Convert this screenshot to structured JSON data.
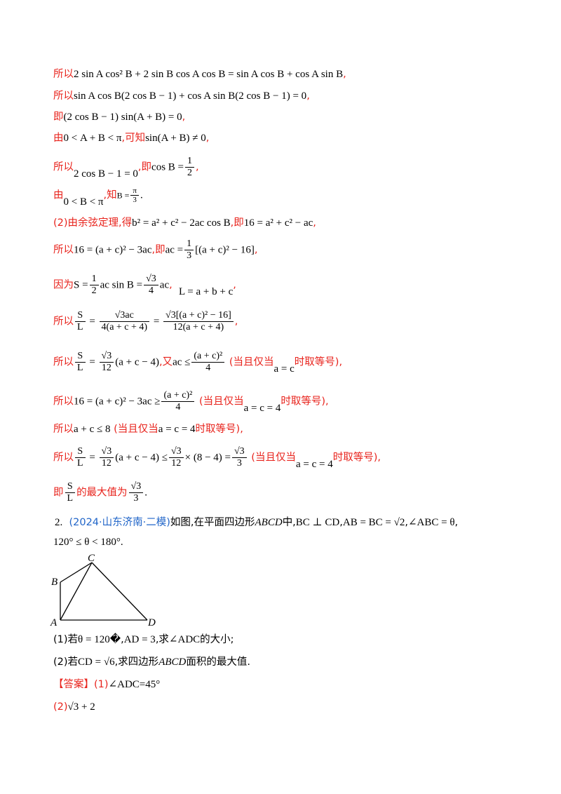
{
  "lines": {
    "l1_prefix": "所以",
    "l1_math": "2 sin A cos² B + 2 sin B cos A cos B = sin A cos B + cos A sin B",
    "l1_suffix": ",",
    "l2_prefix": "所以",
    "l2_math": "sin A cos B(2 cos B − 1) + cos A sin B(2 cos B − 1) = 0",
    "l2_suffix": ",",
    "l3_prefix": "即",
    "l3_math": "(2 cos B − 1) sin(A + B) = 0",
    "l3_suffix": ",",
    "l4_prefix": "由",
    "l4_math": "0 < A + B < π",
    "l4_mid": ",可知",
    "l4_math2": "sin(A + B) ≠ 0",
    "l4_suffix": ",",
    "l5_prefix": "所以",
    "l5_math": "2 cos B − 1 = 0",
    "l5_mid": ",即",
    "l5_math2": "cos B =",
    "l5_num": "1",
    "l5_den": "2",
    "l5_suffix": ",",
    "l6_prefix": "由",
    "l6_math": "0 < B < π",
    "l6_mid": ",知",
    "l6_math2": "B =",
    "l6_num": "π",
    "l6_den": "3",
    "l6_suffix": ".",
    "l7_prefix": "(2)由余弦定理,得",
    "l7_math": "b² = a² + c² − 2ac cos B",
    "l7_mid": ",即",
    "l7_math2": "16 = a² + c² − ac",
    "l7_suffix": ",",
    "l8_prefix": "所以",
    "l8_math": "16 = (a + c)² − 3ac",
    "l8_mid": ",即",
    "l8_math2": "ac =",
    "l8_num": "1",
    "l8_den": "3",
    "l8_math3": "[(a + c)² − 16]",
    "l8_suffix": ",",
    "l9_prefix": "因为",
    "l9_math": "S =",
    "l9_num1": "1",
    "l9_den1": "2",
    "l9_math2": "ac sin B =",
    "l9_num2": "√3",
    "l9_den2": "4",
    "l9_math3": "ac",
    "l9_mid": ",",
    "l9_math4": "L = a + b + c",
    "l9_suffix": ",",
    "l10_prefix": "所以",
    "l10_num1": "S",
    "l10_den1": "L",
    "l10_num2": "√3ac",
    "l10_den2": "4(a + c + 4)",
    "l10_num3": "√3[(a + c)² − 16]",
    "l10_den3": "12(a + c + 4)",
    "l10_suffix": ",",
    "l11_prefix": "所以",
    "l11_num1": "S",
    "l11_den1": "L",
    "l11_num2": "√3",
    "l11_den2": "12",
    "l11_math": "(a + c − 4)",
    "l11_mid": ",又",
    "l11_math2": "ac ≤",
    "l11_num3": "(a + c)²",
    "l11_den3": "4",
    "l11_cond1": "(当且仅当",
    "l11_cond_math": "a = c",
    "l11_cond2": "时取等号),",
    "l12_prefix": "所以",
    "l12_math": "16 = (a + c)² − 3ac ≥",
    "l12_num": "(a + c)²",
    "l12_den": "4",
    "l12_cond1": "(当且仅当",
    "l12_cond_math": "a = c = 4",
    "l12_cond2": "时取等号),",
    "l13_prefix": "所以",
    "l13_math": "a + c ≤ 8",
    "l13_cond1": "(当且仅当",
    "l13_cond_math": "a = c = 4",
    "l13_cond2": "时取等号),",
    "l14_prefix": "所以",
    "l14_num1": "S",
    "l14_den1": "L",
    "l14_num2": "√3",
    "l14_den2": "12",
    "l14_math": "(a + c − 4) ≤",
    "l14_num3": "√3",
    "l14_den3": "12",
    "l14_math2": "× (8 − 4) =",
    "l14_num4": "√3",
    "l14_den4": "3",
    "l14_cond1": "(当且仅当",
    "l14_cond_math": "a = c = 4",
    "l14_cond2": "时取等号),",
    "l15_prefix": "即",
    "l15_num1": "S",
    "l15_den1": "L",
    "l15_mid": "的最大值为",
    "l15_num2": "√3",
    "l15_den2": "3",
    "l15_suffix": "."
  },
  "problem2": {
    "number": "2.",
    "source": "(2024·山东济南·二模)",
    "stem1": "如图,在平面四边形",
    "stem_abcd": "ABCD",
    "stem2": "中,",
    "stem_perp": "BC ⊥ CD",
    "stem3": ",",
    "stem_eq": "AB = BC = √2",
    "stem4": ",",
    "stem_angle": "∠ABC = θ",
    "stem5": ",",
    "range": "120° ≤ θ < 180°",
    "range_suffix": ".",
    "figure_labels": {
      "A": "A",
      "B": "B",
      "C": "C",
      "D": "D"
    },
    "q1_prefix": "(1)若",
    "q1_math": "θ = 120�",
    "q1_mid": ",",
    "q1_math2": "AD = 3",
    "q1_mid2": ",求",
    "q1_math3": "∠ADC",
    "q1_suffix": "的大小;",
    "q2_prefix": "(2)若",
    "q2_math": "CD = √6",
    "q2_mid": ",求四边形",
    "q2_math2": "ABCD",
    "q2_suffix": "面积的最大值.",
    "answer_tag": "【答案】",
    "answer1_prefix": "(1)",
    "answer1_math": "∠ADC=45°",
    "answer2_prefix": "(2)",
    "answer2_math": "√3 + 2"
  },
  "colors": {
    "red": "#e8231c",
    "blue": "#1f64c8",
    "text": "#000000"
  }
}
